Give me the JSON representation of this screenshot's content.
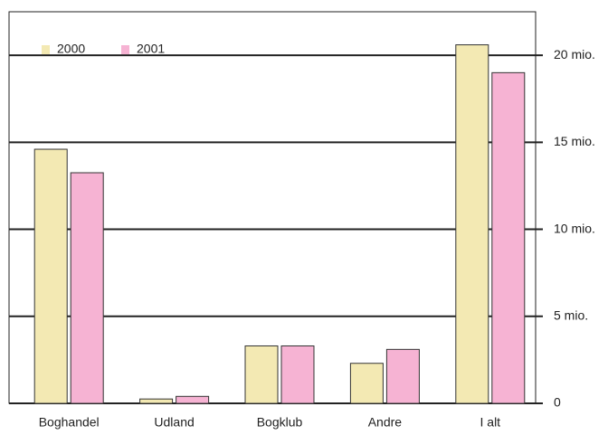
{
  "chart_data": {
    "type": "bar",
    "categories": [
      "Boghandel",
      "Udland",
      "Bogklub",
      "Andre",
      "I alt"
    ],
    "series": [
      {
        "name": "2000",
        "color": "#f3e9b3",
        "values": [
          14.6,
          0.25,
          3.3,
          2.3,
          20.6
        ]
      },
      {
        "name": "2001",
        "color": "#f6b3d3",
        "values": [
          13.25,
          0.4,
          3.3,
          3.1,
          19.0
        ]
      }
    ],
    "ylim": [
      0,
      22.5
    ],
    "yticks": [
      0,
      {
        "value": 5,
        "label": "5 mio."
      },
      {
        "value": 10,
        "label": "10 mio."
      },
      {
        "value": 15,
        "label": "15 mio."
      },
      {
        "value": 20,
        "label": "20 mio."
      }
    ],
    "grid": true,
    "legend": "upper left"
  }
}
